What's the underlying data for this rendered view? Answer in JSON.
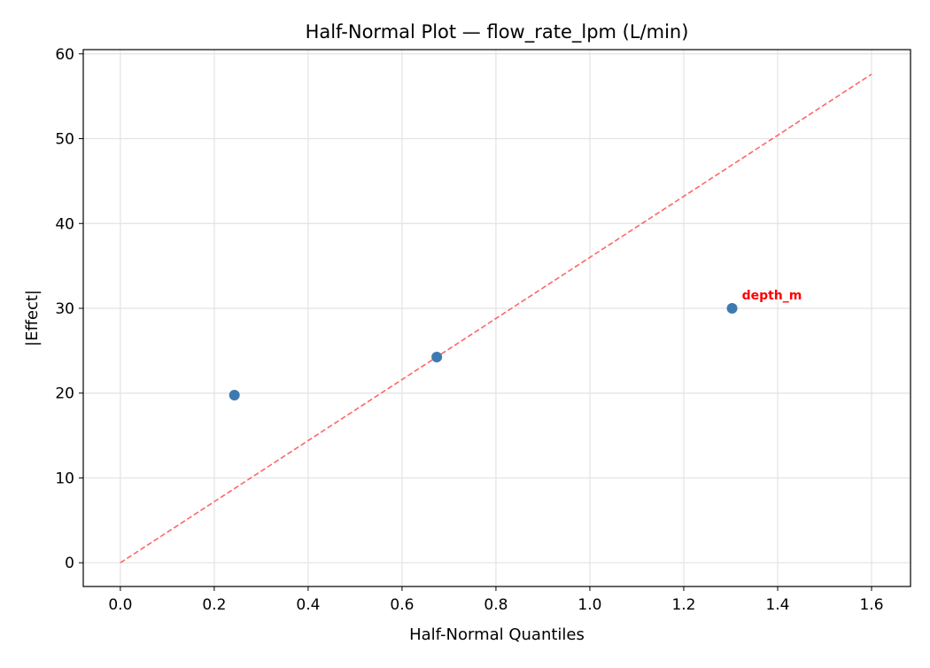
{
  "chart_data": {
    "type": "scatter",
    "title": "Half-Normal Plot — flow_rate_lpm (L/min)",
    "xlabel": "Half-Normal Quantiles",
    "ylabel": "|Effect|",
    "xlim": [
      -0.079,
      1.683
    ],
    "ylim": [
      -2.8,
      60.5
    ],
    "xticks": [
      0.0,
      0.2,
      0.4,
      0.6,
      0.8,
      1.0,
      1.2,
      1.4,
      1.6
    ],
    "xtick_labels": [
      "0.0",
      "0.2",
      "0.4",
      "0.6",
      "0.8",
      "1.0",
      "1.2",
      "1.4",
      "1.6"
    ],
    "yticks": [
      0,
      10,
      20,
      30,
      40,
      50,
      60
    ],
    "ytick_labels": [
      "0",
      "10",
      "20",
      "30",
      "40",
      "50",
      "60"
    ],
    "grid": true,
    "points": [
      {
        "x": 0.243,
        "y": 19.76,
        "label": ""
      },
      {
        "x": 0.674,
        "y": 24.25,
        "label": ""
      },
      {
        "x": 1.303,
        "y": 30.0,
        "label": "depth_m"
      }
    ],
    "reference_line": {
      "x": [
        0,
        1.6
      ],
      "y": [
        0,
        57.6
      ],
      "style": "dashed"
    },
    "colors": {
      "points": "#3d7ab0",
      "reference_line": "#ff6666",
      "annotation": "#ff0000"
    }
  }
}
